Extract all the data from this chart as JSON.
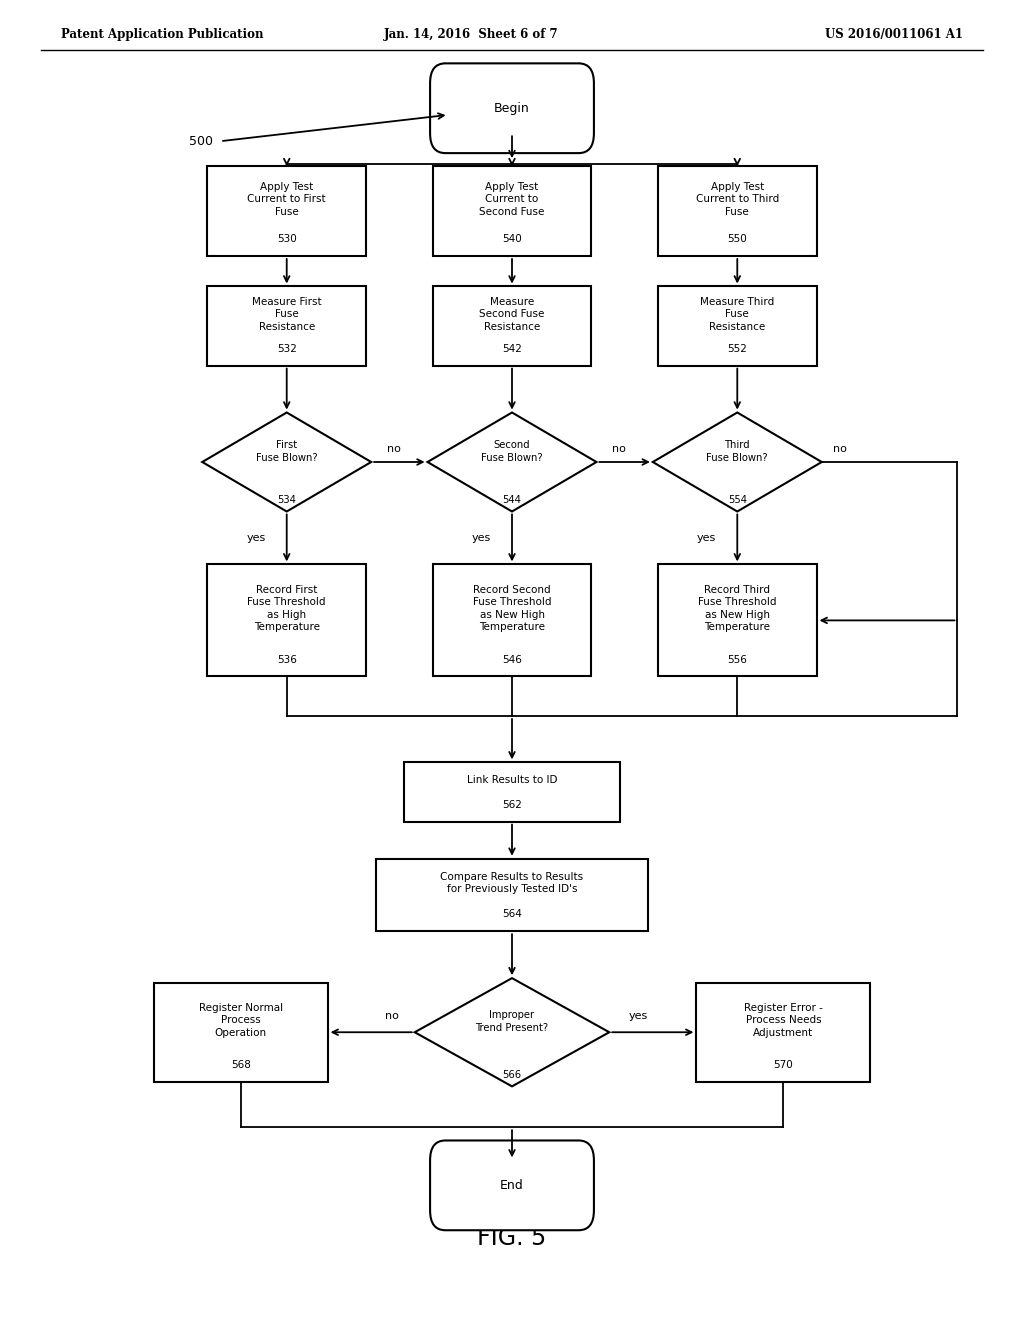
{
  "header_left": "Patent Application Publication",
  "header_mid": "Jan. 14, 2016  Sheet 6 of 7",
  "header_right": "US 2016/0011061 A1",
  "fig_label": "FIG. 5",
  "diagram_label": "500",
  "bg_color": "#ffffff",
  "line_color": "#000000",
  "col1": 0.28,
  "col2": 0.5,
  "col3": 0.72
}
